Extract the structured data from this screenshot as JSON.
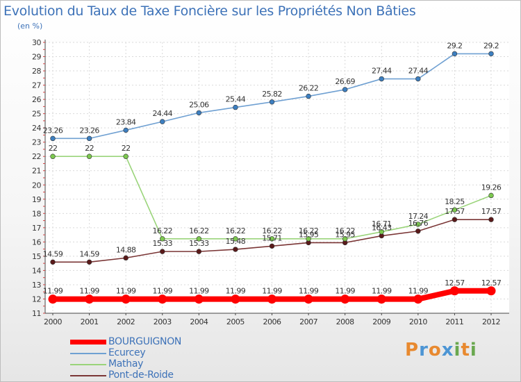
{
  "header": {
    "title": "Evolution du Taux de Taxe Foncière sur les Propriétés Non Bâties",
    "subtitle": "(en %)"
  },
  "brand": {
    "name": "Proxiti",
    "letters": [
      "P",
      "r",
      "o",
      "x",
      "i",
      "t",
      "i"
    ],
    "letter_colors": [
      "#e8892f",
      "#4c95d4",
      "#e8892f",
      "#4c95d4",
      "#6aa84f",
      "#e8892f",
      "#6aa84f"
    ]
  },
  "chart_data": {
    "type": "line",
    "title": "Evolution du Taux de Taxe Foncière sur les Propriétés Non Bâties",
    "ylabel": "(en %)",
    "xlabel": "",
    "ylim": [
      11,
      30
    ],
    "yticks": [
      11,
      12,
      13,
      14,
      15,
      16,
      17,
      18,
      19,
      20,
      21,
      22,
      23,
      24,
      25,
      26,
      27,
      28,
      29,
      30
    ],
    "x": [
      "2000",
      "2001",
      "2002",
      "2003",
      "2004",
      "2005",
      "2006",
      "2007",
      "2008",
      "2009",
      "2010",
      "2011",
      "2012"
    ],
    "grid": true,
    "legend_position": "bottom-left",
    "series": [
      {
        "name": "BOURGUIGNON",
        "color": "#ff0000",
        "marker_color": "#ff0000",
        "values": [
          11.99,
          11.99,
          11.99,
          11.99,
          11.99,
          11.99,
          11.99,
          11.99,
          11.99,
          11.99,
          11.99,
          12.57,
          12.57
        ],
        "labels": [
          "11.99",
          "11.99",
          "11.99",
          "11.99",
          "11.99",
          "11.99",
          "11.99",
          "11.99",
          "11.99",
          "11.99",
          "11.99",
          "12.57",
          "12.57"
        ]
      },
      {
        "name": "Ecurcey",
        "color": "#6fa0d2",
        "marker_color": "#3d7fc0",
        "values": [
          23.26,
          23.26,
          23.84,
          24.44,
          25.06,
          25.44,
          25.82,
          26.22,
          26.69,
          27.44,
          27.44,
          29.2,
          29.2
        ],
        "labels": [
          "23.26",
          "23.26",
          "23.84",
          "24.44",
          "25.06",
          "25.44",
          "25.82",
          "26.22",
          "26.69",
          "27.44",
          "27.44",
          "29.2",
          "29.2"
        ]
      },
      {
        "name": "Mathay",
        "color": "#9ad47a",
        "marker_color": "#7cc84f",
        "values": [
          22,
          22,
          22,
          16.22,
          16.22,
          16.22,
          16.22,
          16.22,
          16.22,
          16.71,
          17.24,
          18.25,
          19.26
        ],
        "labels": [
          "22",
          "22",
          "22",
          "16.22",
          "16.22",
          "16.22",
          "16.22",
          "16.22",
          "16.22",
          "16.71",
          "17.24",
          "18.25",
          "19.26"
        ]
      },
      {
        "name": "Pont-de-Roide",
        "color": "#7a3535",
        "marker_color": "#5a1a1a",
        "values": [
          14.59,
          14.59,
          14.88,
          15.33,
          15.33,
          15.48,
          15.71,
          15.95,
          15.95,
          16.43,
          16.76,
          17.57,
          17.57
        ],
        "labels": [
          "14.59",
          "14.59",
          "14.88",
          "15.33",
          "15.33",
          "15.48",
          "15.71",
          "15.95",
          "15.95",
          "16.43",
          "16.76",
          "17.57",
          "17.57"
        ]
      }
    ]
  }
}
